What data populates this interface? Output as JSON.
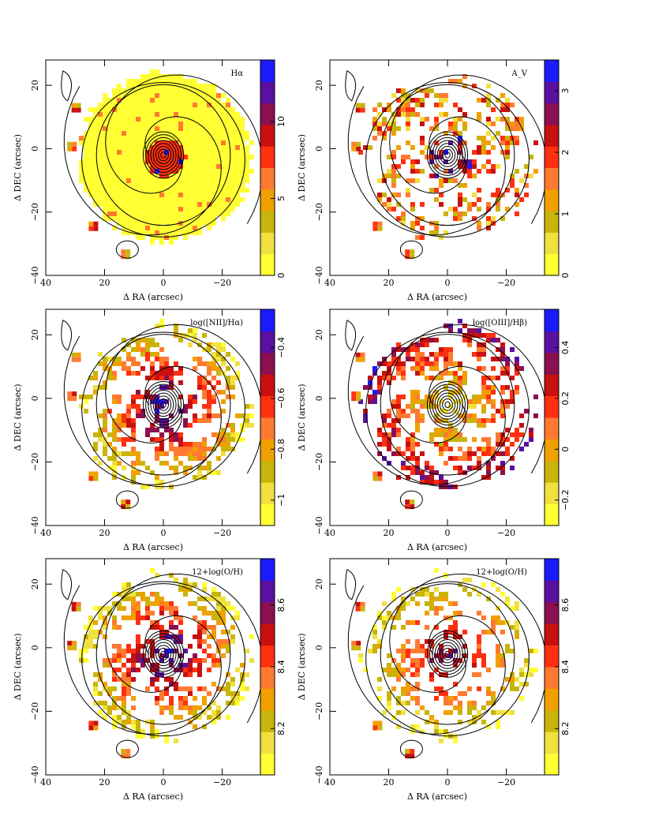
{
  "figure": {
    "colormap": [
      "#ffff33",
      "#f0e040",
      "#c8b40a",
      "#f0a000",
      "#ff7a30",
      "#ff3010",
      "#c81010",
      "#8a1050",
      "#5a10a0",
      "#1a1aff"
    ]
  },
  "chart_data": [
    {
      "type": "heatmap",
      "title": "Hα",
      "xlabel": "Δ RA (arcsec)",
      "ylabel": "Δ DEC (arcsec)",
      "xlim": [
        40,
        -33
      ],
      "ylim": [
        -40,
        28
      ],
      "xticks": [
        "40",
        "20",
        "0",
        "−20"
      ],
      "yticks": [
        "−40",
        "−20",
        "0",
        "20"
      ],
      "colorbar": {
        "range": [
          0,
          14
        ],
        "ticks": [
          "0",
          "5",
          "10"
        ]
      },
      "fill": "full",
      "seed": 1
    },
    {
      "type": "heatmap",
      "title": "A_V",
      "xlabel": "Δ RA (arcsec)",
      "ylabel": "Δ DEC (arcsec)",
      "xlim": [
        40,
        -33
      ],
      "ylim": [
        -40,
        28
      ],
      "xticks": [
        "40",
        "20",
        "0",
        "−20"
      ],
      "yticks": [
        "−40",
        "−20",
        "0",
        "20"
      ],
      "colorbar": {
        "range": [
          0,
          3.5
        ],
        "ticks": [
          "0",
          "1",
          "2",
          "3"
        ]
      },
      "fill": "sparse",
      "seed": 2
    },
    {
      "type": "heatmap",
      "title": "log([NII]/Hα)",
      "xlabel": "Δ RA (arcsec)",
      "ylabel": "Δ DEC (arcsec)",
      "xlim": [
        40,
        -33
      ],
      "ylim": [
        -40,
        28
      ],
      "xticks": [
        "40",
        "20",
        "0",
        "−20"
      ],
      "yticks": [
        "−40",
        "−20",
        "0",
        "20"
      ],
      "colorbar": {
        "range": [
          -1.1,
          -0.25
        ],
        "ticks": [
          "−1",
          "−0.8",
          "−0.6",
          "−0.4"
        ]
      },
      "fill": "medium",
      "seed": 3
    },
    {
      "type": "heatmap",
      "title": "log([OIII]/Hβ)",
      "xlabel": "Δ RA (arcsec)",
      "ylabel": "Δ DEC (arcsec)",
      "xlim": [
        40,
        -33
      ],
      "ylim": [
        -40,
        28
      ],
      "xticks": [
        "40",
        "20",
        "0",
        "−20"
      ],
      "yticks": [
        "−40",
        "−20",
        "0",
        "20"
      ],
      "colorbar": {
        "range": [
          -0.3,
          0.55
        ],
        "ticks": [
          "−0.2",
          "0",
          "0.2",
          "0.4"
        ]
      },
      "fill": "medium",
      "seed": 4
    },
    {
      "type": "heatmap",
      "title": "12+log(O/H)",
      "xlabel": "Δ RA (arcsec)",
      "ylabel": "Δ DEC (arcsec)",
      "xlim": [
        40,
        -33
      ],
      "ylim": [
        -40,
        28
      ],
      "xticks": [
        "40",
        "20",
        "0",
        "−20"
      ],
      "yticks": [
        "−40",
        "−20",
        "0",
        "20"
      ],
      "colorbar": {
        "range": [
          8.05,
          8.75
        ],
        "ticks": [
          "8.2",
          "8.4",
          "8.6"
        ]
      },
      "fill": "medium",
      "seed": 5
    },
    {
      "type": "heatmap",
      "title": "12+log(O/H)",
      "xlabel": "Δ RA (arcsec)",
      "ylabel": "Δ DEC (arcsec)",
      "xlim": [
        40,
        -33
      ],
      "ylim": [
        -40,
        28
      ],
      "xticks": [
        "40",
        "20",
        "0",
        "−20"
      ],
      "yticks": [
        "−40",
        "−20",
        "0",
        "20"
      ],
      "colorbar": {
        "range": [
          8.05,
          8.75
        ],
        "ticks": [
          "8.2",
          "8.4",
          "8.6"
        ]
      },
      "fill": "sparse",
      "seed": 6
    }
  ]
}
